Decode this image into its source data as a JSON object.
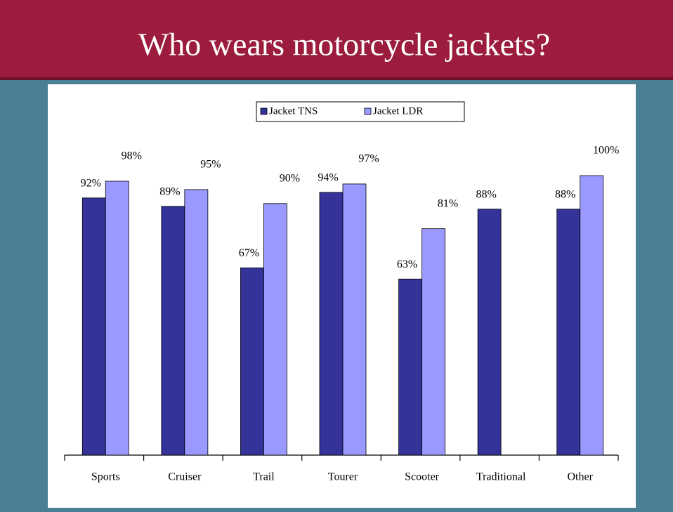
{
  "title": "Who wears motorcycle jackets?",
  "chart_data": {
    "type": "bar",
    "categories": [
      "Sports",
      "Cruiser",
      "Trail",
      "Tourer",
      "Scooter",
      "Traditional",
      "Other"
    ],
    "series": [
      {
        "name": "Jacket TNS",
        "color": "#333399",
        "values": [
          92,
          89,
          67,
          94,
          63,
          88,
          88
        ],
        "value_labels": [
          "92%",
          "89%",
          "67%",
          "94%",
          "63%",
          "88%",
          "88%"
        ]
      },
      {
        "name": "Jacket LDR",
        "color": "#9999ff",
        "values": [
          98,
          95,
          90,
          97,
          81,
          null,
          100
        ],
        "value_labels": [
          "98%",
          "95%",
          "90%",
          "97%",
          "81%",
          null,
          "100%"
        ]
      }
    ],
    "ylim": [
      0,
      100
    ],
    "legend": "top"
  }
}
